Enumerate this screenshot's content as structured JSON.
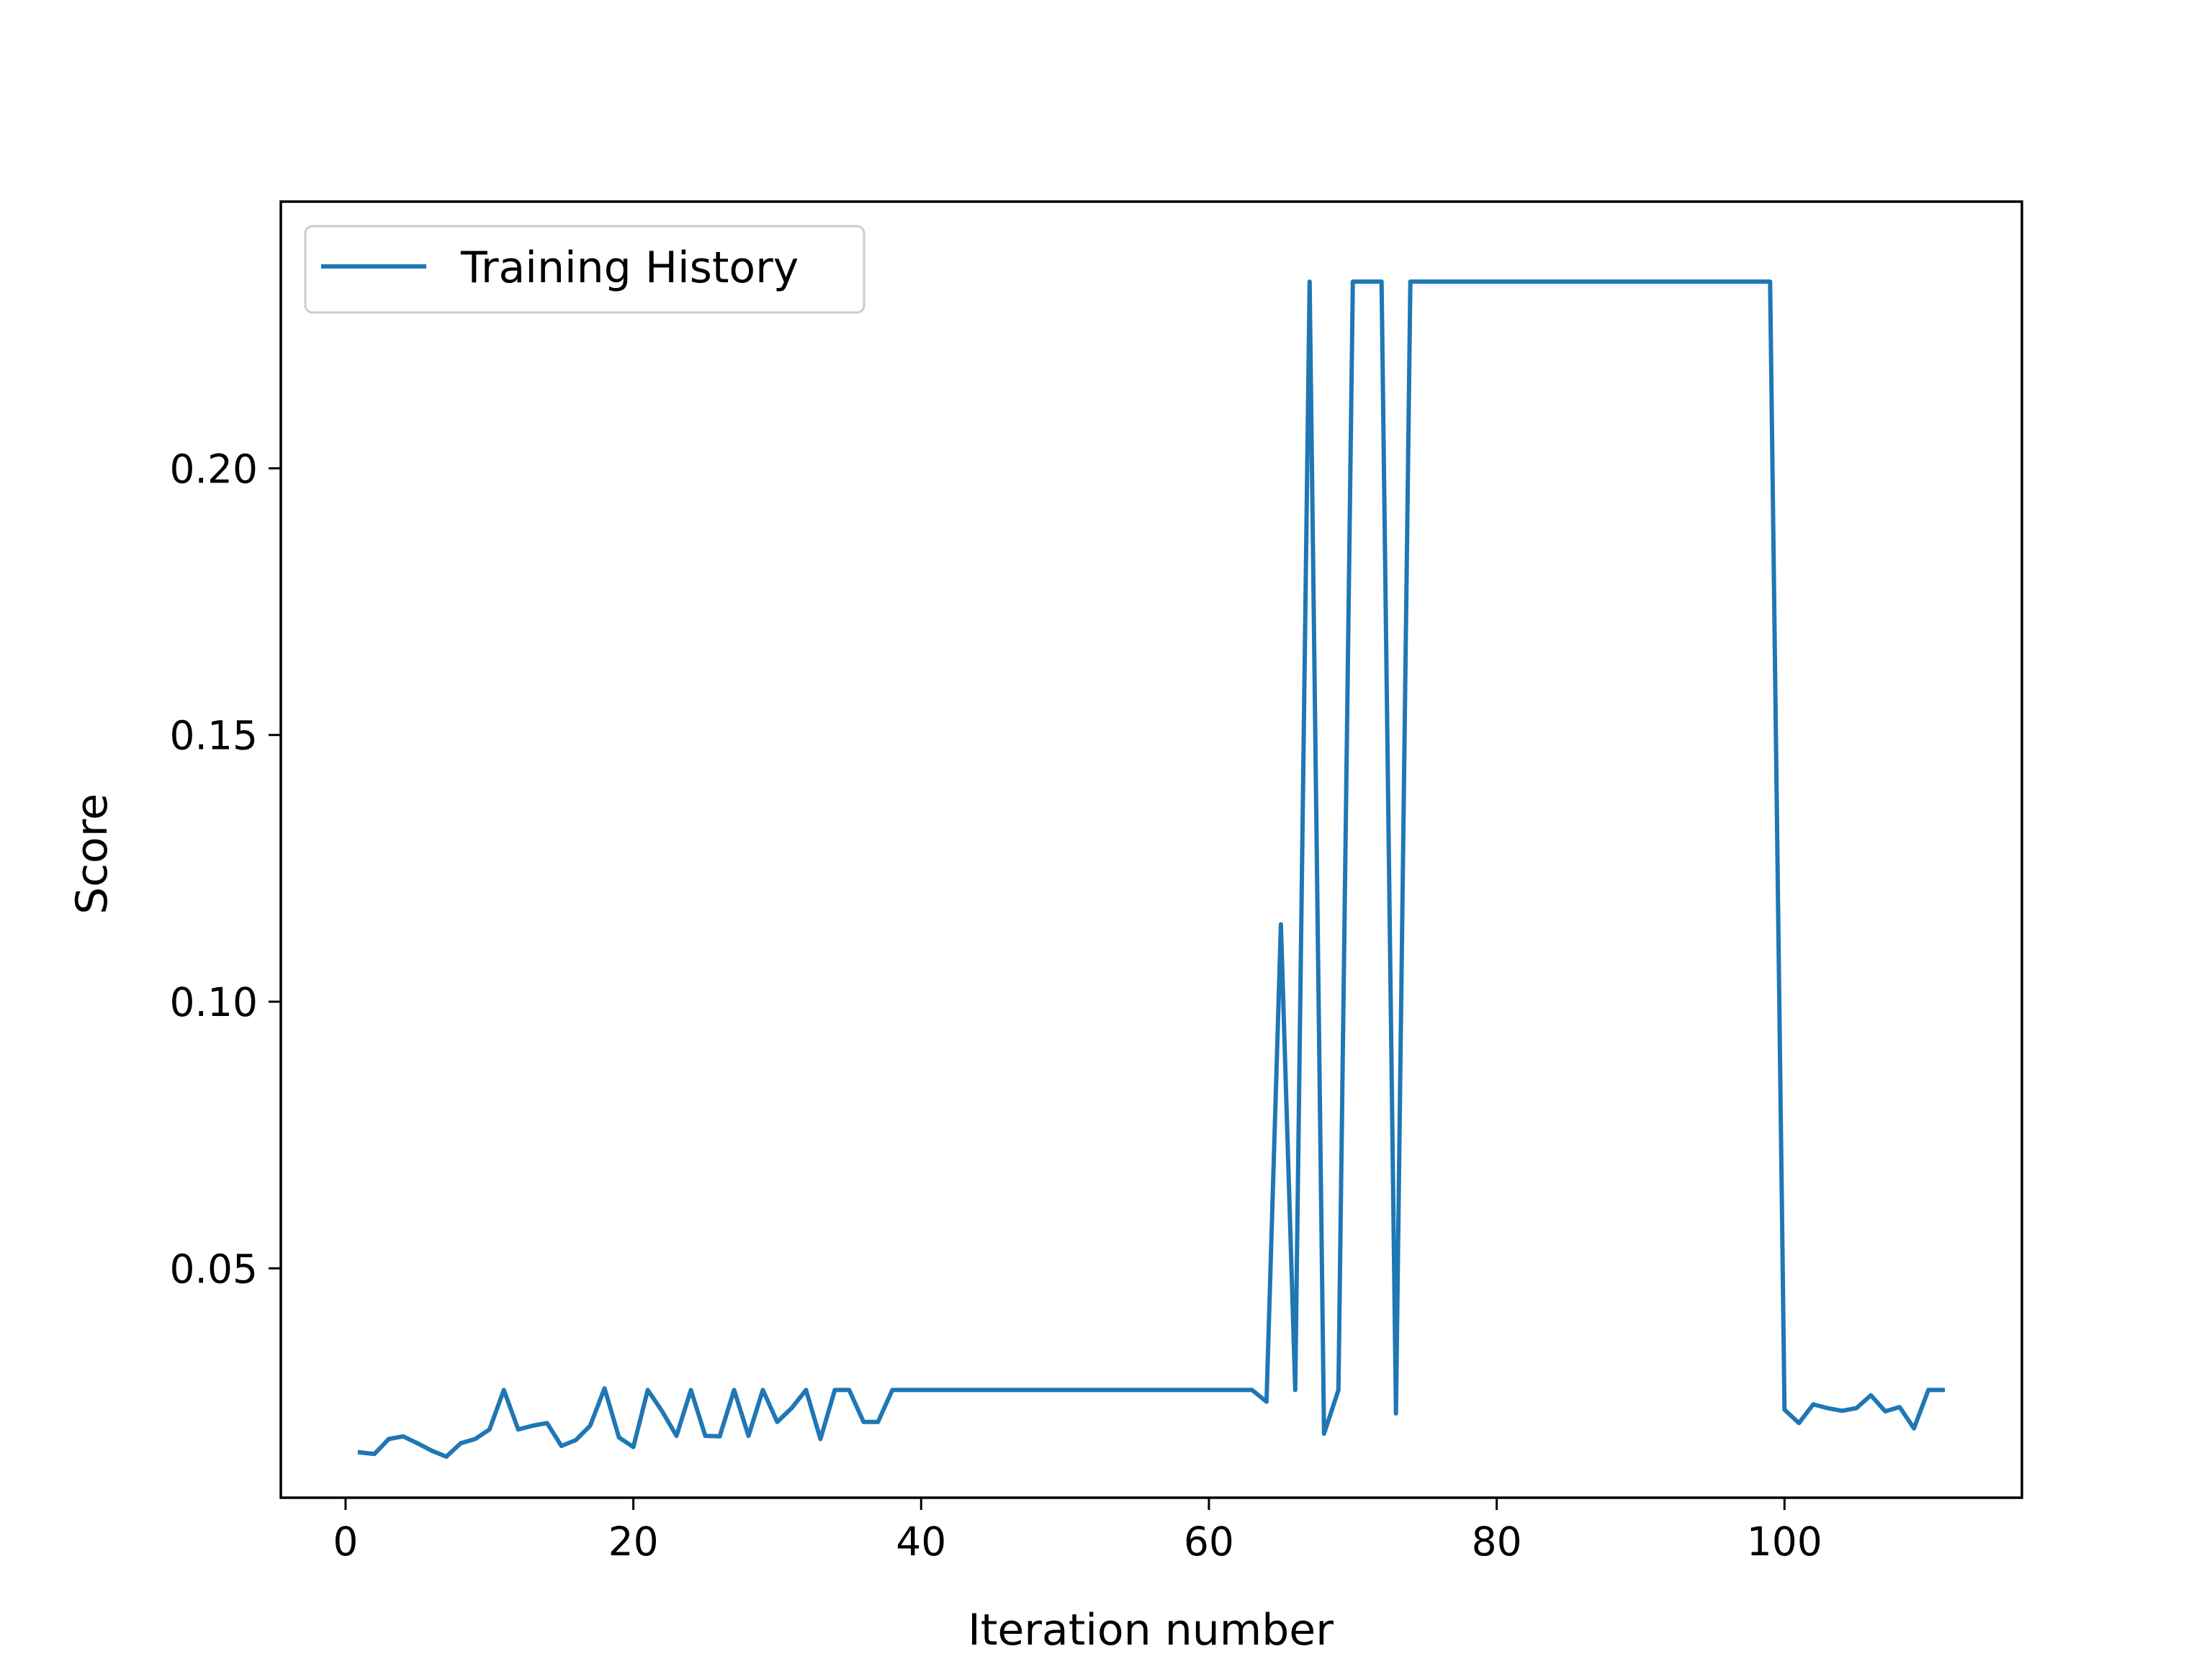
{
  "chart_data": {
    "type": "line",
    "xlabel": "Iteration number",
    "ylabel": "Score",
    "xlim": [
      -4.5,
      116.5
    ],
    "ylim": [
      0.007,
      0.25
    ],
    "xticks": [
      0,
      20,
      40,
      60,
      80,
      100
    ],
    "yticks": [
      0.05,
      0.1,
      0.15,
      0.2
    ],
    "ytick_labels": [
      "0.05",
      "0.10",
      "0.15",
      "0.20"
    ],
    "grid": false,
    "legend": {
      "position": "top-left",
      "entries": [
        "Training History"
      ]
    },
    "colors": {
      "series": "#1f77b4"
    },
    "series": [
      {
        "name": "Training History",
        "x": [
          1,
          2,
          3,
          4,
          5,
          6,
          7,
          8,
          9,
          10,
          11,
          12,
          13,
          14,
          15,
          16,
          17,
          18,
          19,
          20,
          21,
          22,
          23,
          24,
          25,
          26,
          27,
          28,
          29,
          30,
          31,
          32,
          33,
          34,
          35,
          36,
          37,
          38,
          39,
          40,
          41,
          42,
          43,
          44,
          45,
          46,
          47,
          48,
          49,
          50,
          51,
          52,
          53,
          54,
          55,
          56,
          57,
          58,
          59,
          60,
          61,
          62,
          63,
          64,
          65,
          66,
          67,
          68,
          69,
          70,
          71,
          72,
          73,
          74,
          75,
          76,
          77,
          78,
          79,
          80,
          81,
          82,
          83,
          84,
          85,
          86,
          87,
          88,
          89,
          90,
          91,
          92,
          93,
          94,
          95,
          96,
          97,
          98,
          99,
          100,
          101,
          102,
          103,
          104,
          105,
          106,
          107,
          108,
          109,
          110,
          111
        ],
        "y": [
          0.0155,
          0.0152,
          0.018,
          0.0185,
          0.0172,
          0.0158,
          0.0147,
          0.0172,
          0.018,
          0.0198,
          0.0272,
          0.0198,
          0.0205,
          0.021,
          0.0167,
          0.0178,
          0.0205,
          0.0275,
          0.0183,
          0.0165,
          0.0272,
          0.0232,
          0.0186,
          0.0272,
          0.0186,
          0.0185,
          0.0272,
          0.0186,
          0.0272,
          0.0212,
          0.0238,
          0.0272,
          0.018,
          0.0272,
          0.0272,
          0.0212,
          0.0212,
          0.0272,
          0.0272,
          0.0272,
          0.0272,
          0.0272,
          0.0272,
          0.0272,
          0.0272,
          0.0272,
          0.0272,
          0.0272,
          0.0272,
          0.0272,
          0.0272,
          0.0272,
          0.0272,
          0.0272,
          0.0272,
          0.0272,
          0.0272,
          0.0272,
          0.0272,
          0.0272,
          0.0272,
          0.0272,
          0.0272,
          0.025,
          0.1145,
          0.0272,
          0.235,
          0.019,
          0.0272,
          0.235,
          0.235,
          0.235,
          0.0228,
          0.235,
          0.235,
          0.235,
          0.235,
          0.235,
          0.235,
          0.235,
          0.235,
          0.235,
          0.235,
          0.235,
          0.235,
          0.235,
          0.235,
          0.235,
          0.235,
          0.235,
          0.235,
          0.235,
          0.235,
          0.235,
          0.235,
          0.235,
          0.235,
          0.235,
          0.235,
          0.0235,
          0.021,
          0.0245,
          0.0238,
          0.0233,
          0.0238,
          0.0262,
          0.0232,
          0.024,
          0.02,
          0.0272,
          0.0272
        ]
      }
    ]
  }
}
